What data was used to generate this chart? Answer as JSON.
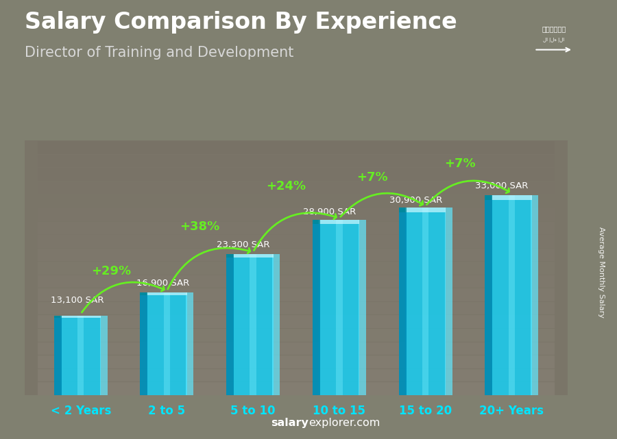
{
  "title": "Salary Comparison By Experience",
  "subtitle": "Director of Training and Development",
  "categories": [
    "< 2 Years",
    "2 to 5",
    "5 to 10",
    "10 to 15",
    "15 to 20",
    "20+ Years"
  ],
  "values": [
    13100,
    16900,
    23300,
    28900,
    30900,
    33000
  ],
  "salary_labels": [
    "13,100 SAR",
    "16,900 SAR",
    "23,300 SAR",
    "28,900 SAR",
    "30,900 SAR",
    "33,000 SAR"
  ],
  "pct_labels": [
    "+29%",
    "+38%",
    "+24%",
    "+7%",
    "+7%"
  ],
  "bar_main_color": "#1ab8d8",
  "bar_left_color": "#0088aa",
  "bar_right_color": "#55ddee",
  "bar_highlight_color": "#aaf5ff",
  "pct_color": "#88ff00",
  "cat_color": "#00e5ff",
  "footer_salary_color": "#ffffff",
  "footer_explorer_color": "#ffffff",
  "ylabel": "Average Monthly Salary",
  "ylim": [
    0,
    42000
  ],
  "bar_width": 0.62,
  "bg_left_color": "#888880",
  "bg_right_color": "#6a6a60",
  "title_color": "#ffffff",
  "subtitle_color": "#cccccc",
  "salary_label_color": "#ffffff",
  "arrow_color": "#66ee22",
  "flag_bg": "#1e7a1e"
}
